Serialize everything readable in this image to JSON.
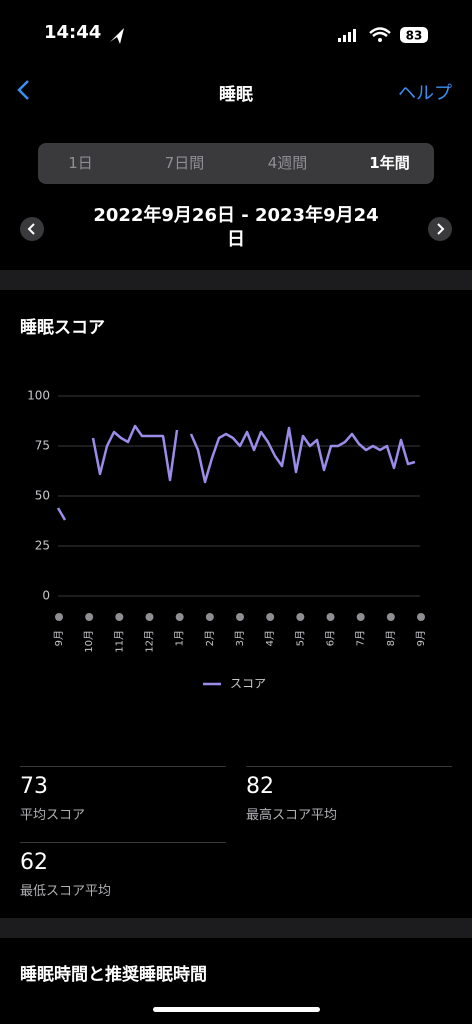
{
  "status_bar": {
    "time": "14:44",
    "battery": "83"
  },
  "nav": {
    "title": "睡眠",
    "help": "ヘルプ"
  },
  "tabs": [
    "1日",
    "7日間",
    "4週間",
    "1年間"
  ],
  "date_range": "2022年9月26日 - 2023年9月24日",
  "section_title": "睡眠スコア",
  "chart_data": {
    "type": "line",
    "x_labels": [
      "9月",
      "10月",
      "11月",
      "12月",
      "1月",
      "2月",
      "3月",
      "4月",
      "5月",
      "6月",
      "7月",
      "8月",
      "9月"
    ],
    "ylim": [
      0,
      100
    ],
    "yticks": [
      0,
      25,
      50,
      75,
      100
    ],
    "grid": true,
    "series": [
      {
        "name": "スコア",
        "color": "#9b8cea",
        "values": [
          44,
          38,
          null,
          null,
          null,
          79,
          61,
          75,
          82,
          79,
          77,
          85,
          80,
          80,
          80,
          80,
          58,
          83,
          null,
          81,
          73,
          57,
          69,
          79,
          81,
          79,
          75,
          82,
          73,
          82,
          77,
          70,
          65,
          84,
          62,
          80,
          75,
          78,
          63,
          75,
          75,
          77,
          81,
          76,
          73,
          75,
          73,
          75,
          64,
          78,
          66,
          67
        ]
      }
    ]
  },
  "stats": [
    {
      "value": "73",
      "label": "平均スコア"
    },
    {
      "value": "82",
      "label": "最高スコア平均"
    },
    {
      "value": "62",
      "label": "最低スコア平均"
    }
  ],
  "next_section_title": "睡眠時間と推奨睡眠時間"
}
